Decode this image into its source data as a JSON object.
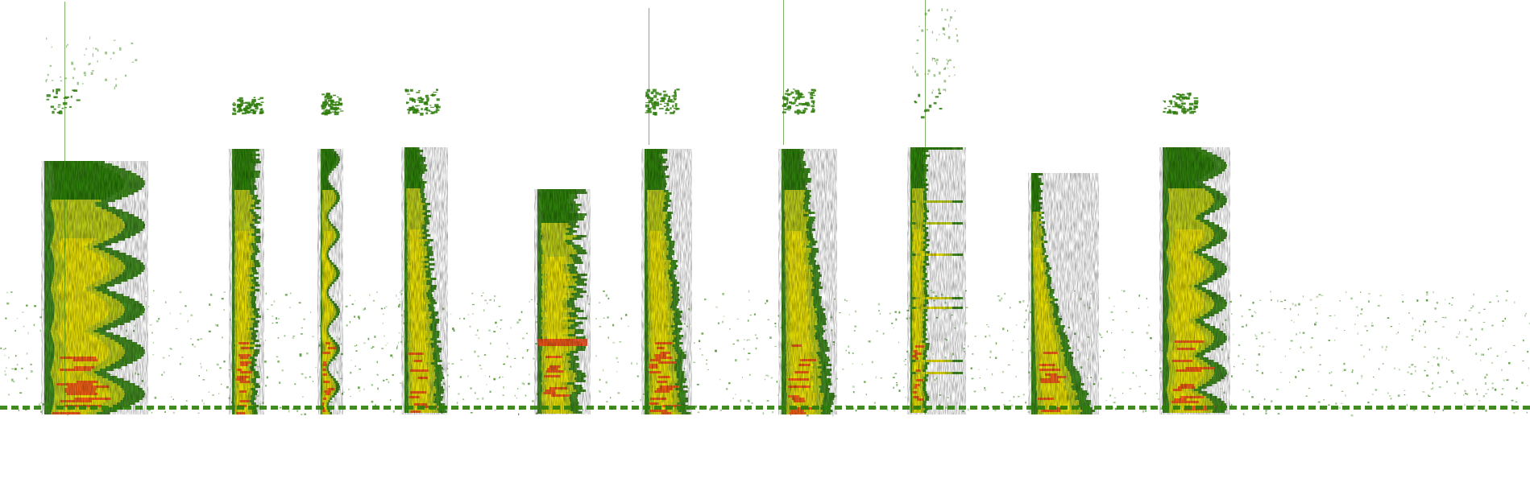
{
  "image": {
    "kind": "spectrogram",
    "background": "#ffffff",
    "palette": {
      "low": "#2e7d0a",
      "mid": "#c8d21a",
      "high": "#f5e600",
      "peak": "#f04a1c"
    },
    "segment_count": 10,
    "baseline_noise": true
  }
}
